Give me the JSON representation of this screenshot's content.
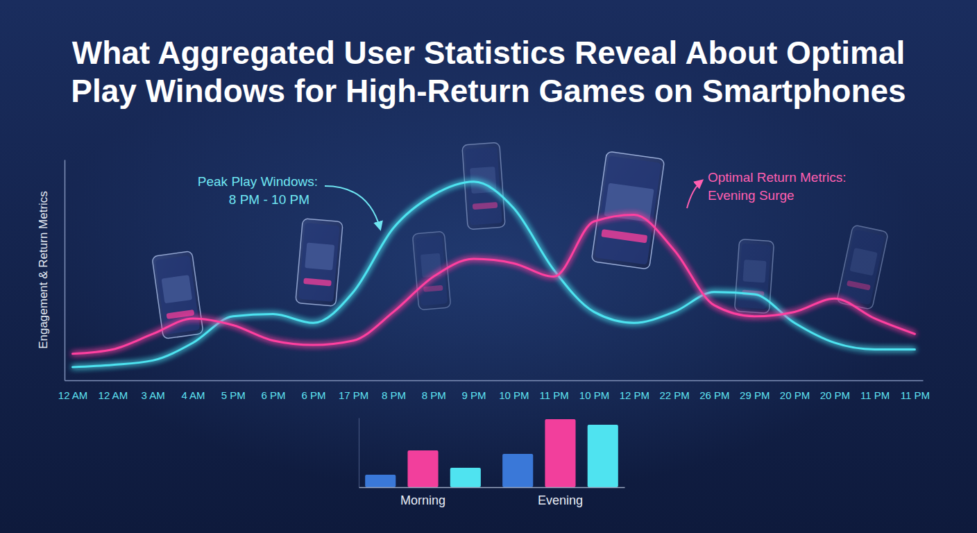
{
  "chart_data": [
    {
      "type": "line",
      "title": "What Aggregated User Statistics Reveal About Optimal Play Windows for High-Return Games on Smartphones",
      "ylabel": "Engagement & Return Metrics",
      "categories": [
        "12 AM",
        "12 AM",
        "3 AM",
        "4 AM",
        "5 PM",
        "6 PM",
        "6 PM",
        "17 PM",
        "8 PM",
        "8 PM",
        "9 PM",
        "10 PM",
        "11 PM",
        "10 PM",
        "12 PM",
        "22 PM",
        "26 PM",
        "29 PM",
        "20 PM",
        "20 PM",
        "11 PM",
        "11 PM"
      ],
      "series": [
        {
          "color": "#4de3f0",
          "values": [
            6,
            7,
            9,
            17,
            29,
            30,
            26,
            40,
            69,
            84,
            90,
            78,
            50,
            31,
            26,
            31,
            40,
            39,
            26,
            17,
            14,
            14
          ]
        },
        {
          "color": "#ff3fa0",
          "values": [
            12,
            14,
            21,
            28,
            25,
            18,
            16,
            18,
            31,
            47,
            55,
            53,
            47,
            72,
            75,
            59,
            34,
            29,
            31,
            37,
            28,
            21
          ]
        }
      ],
      "ylim": [
        0,
        100
      ],
      "yticks": [],
      "grid": false,
      "tick_labels": "x",
      "annotations": [
        "Peak Play Windows:",
        "8 PM - 10 PM",
        "Optimal Return Metrics:",
        "Evening Surge"
      ]
    },
    {
      "type": "bar",
      "categories": [
        "Morning",
        "Evening"
      ],
      "series": [
        {
          "color": "#3a78d8",
          "values": [
            18,
            48
          ]
        },
        {
          "color": "#f23f9c",
          "values": [
            53,
            98
          ]
        },
        {
          "color": "#4fe3f0",
          "values": [
            28,
            90
          ]
        }
      ],
      "ylim": [
        0,
        100
      ],
      "yticks": [],
      "grid": false,
      "tick_labels": "x"
    }
  ]
}
